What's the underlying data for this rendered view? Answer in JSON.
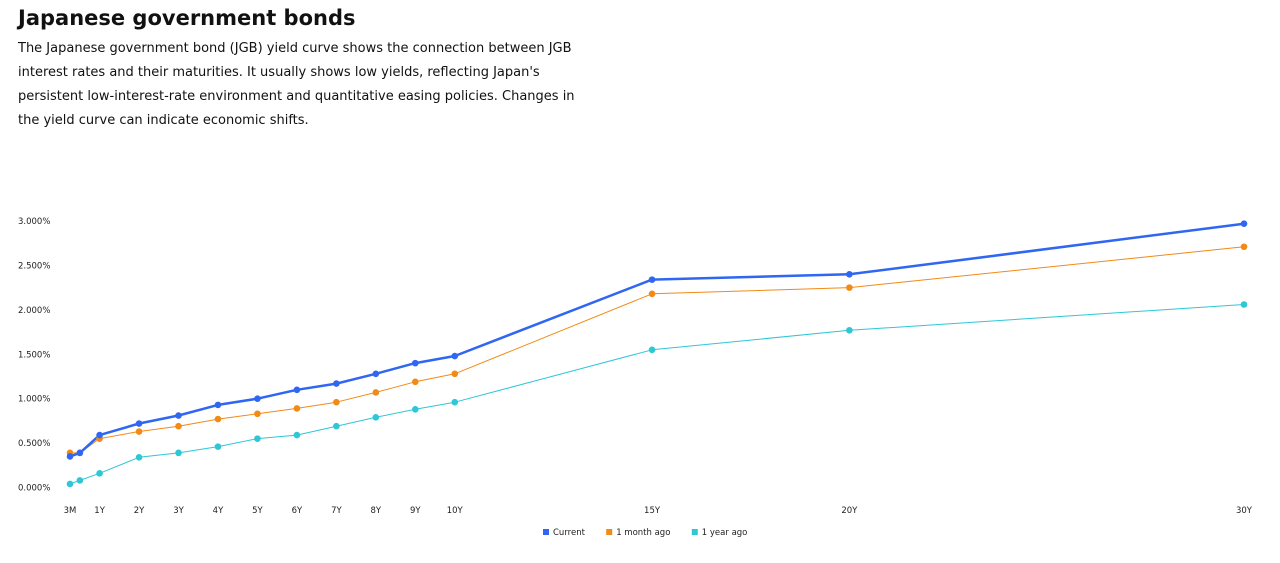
{
  "header": {
    "title": "Japanese government bonds",
    "description": "The Japanese government bond (JGB) yield curve shows the connection between JGB interest rates and their maturities. It usually shows low yields, reflecting Japan's persistent low-interest-rate environment and quantitative easing policies. Changes in the yield curve can indicate economic shifts."
  },
  "chart_data": {
    "type": "line",
    "title": "",
    "xlabel": "",
    "ylabel": "",
    "x": [
      0.25,
      0.5,
      1,
      2,
      3,
      4,
      5,
      6,
      7,
      8,
      9,
      10,
      15,
      20,
      30
    ],
    "x_ticks": [
      {
        "x": 0.25,
        "label": "3M"
      },
      {
        "x": 1,
        "label": "1Y"
      },
      {
        "x": 2,
        "label": "2Y"
      },
      {
        "x": 3,
        "label": "3Y"
      },
      {
        "x": 4,
        "label": "4Y"
      },
      {
        "x": 5,
        "label": "5Y"
      },
      {
        "x": 6,
        "label": "6Y"
      },
      {
        "x": 7,
        "label": "7Y"
      },
      {
        "x": 8,
        "label": "8Y"
      },
      {
        "x": 9,
        "label": "9Y"
      },
      {
        "x": 10,
        "label": "10Y"
      },
      {
        "x": 15,
        "label": "15Y"
      },
      {
        "x": 20,
        "label": "20Y"
      },
      {
        "x": 30,
        "label": "30Y"
      }
    ],
    "y_ticks": [
      {
        "y": 0.0,
        "label": "0.000%"
      },
      {
        "y": 0.5,
        "label": "0.500%"
      },
      {
        "y": 1.0,
        "label": "1.000%"
      },
      {
        "y": 1.5,
        "label": "1.500%"
      },
      {
        "y": 2.0,
        "label": "2.000%"
      },
      {
        "y": 2.5,
        "label": "2.500%"
      },
      {
        "y": 3.0,
        "label": "3.000%"
      }
    ],
    "xlim": [
      0.25,
      30
    ],
    "ylim": [
      0,
      3.0
    ],
    "grid": false,
    "legend": "bottom-center",
    "series": [
      {
        "name": "1 year ago",
        "color": "#2ec7d6",
        "width": 1,
        "values": [
          0.04,
          0.08,
          0.16,
          0.34,
          0.39,
          0.46,
          0.55,
          0.59,
          0.69,
          0.79,
          0.88,
          0.96,
          1.55,
          1.77,
          2.06
        ]
      },
      {
        "name": "1 month ago",
        "color": "#f28a16",
        "width": 1,
        "values": [
          0.39,
          0.39,
          0.55,
          0.63,
          0.69,
          0.77,
          0.83,
          0.89,
          0.96,
          1.07,
          1.19,
          1.28,
          2.18,
          2.25,
          2.71
        ]
      },
      {
        "name": "Current",
        "color": "#2f66f2",
        "width": 2.5,
        "values": [
          0.35,
          0.39,
          0.59,
          0.72,
          0.81,
          0.93,
          1.0,
          1.1,
          1.17,
          1.28,
          1.4,
          1.48,
          2.34,
          2.4,
          2.97
        ]
      }
    ],
    "legend_order": [
      "Current",
      "1 month ago",
      "1 year ago"
    ]
  }
}
